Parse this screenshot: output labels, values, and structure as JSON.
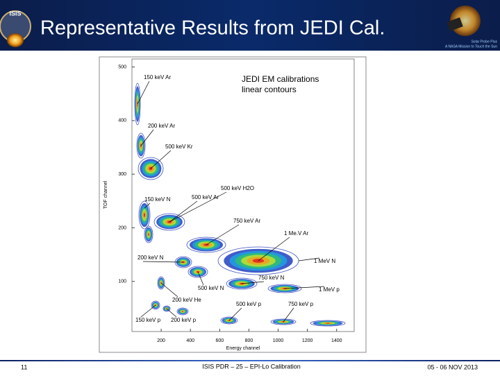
{
  "header": {
    "title": "Representative Results from JEDI Cal.",
    "logo_caption": [
      "Solar Probe Plus",
      "A NASA Mission to Touch the Sun"
    ]
  },
  "figure": {
    "title": "JEDI EM calibrations",
    "subtitle": "linear contours",
    "x_label": "Energy channel",
    "y_label": "TOF channel",
    "xlim": [
      0,
      1520
    ],
    "ylim": [
      0,
      515
    ],
    "xticks": [
      200,
      400,
      600,
      800,
      1000,
      1200,
      1400
    ],
    "yticks": [
      100,
      200,
      300,
      400,
      500
    ],
    "annotations": [
      "150 keV Ar",
      "200 keV Ar",
      "500 keV Kr",
      "500 keV H2O",
      "150 keV N",
      "500 keV Ar",
      "750 keV Ar",
      "1 Me.V Ar",
      "200 keV N",
      "1 MeV N",
      "750 keV N",
      "500 keV N",
      "1 MeV p",
      "200 keV He",
      "500 keV p",
      "750 keV p",
      "150 keV p",
      "200 keV p"
    ]
  },
  "footer": {
    "page": "11",
    "center": "ISIS PDR – 25 – EPI-Lo Calibration",
    "date": "05 - 06 NOV 2013"
  }
}
